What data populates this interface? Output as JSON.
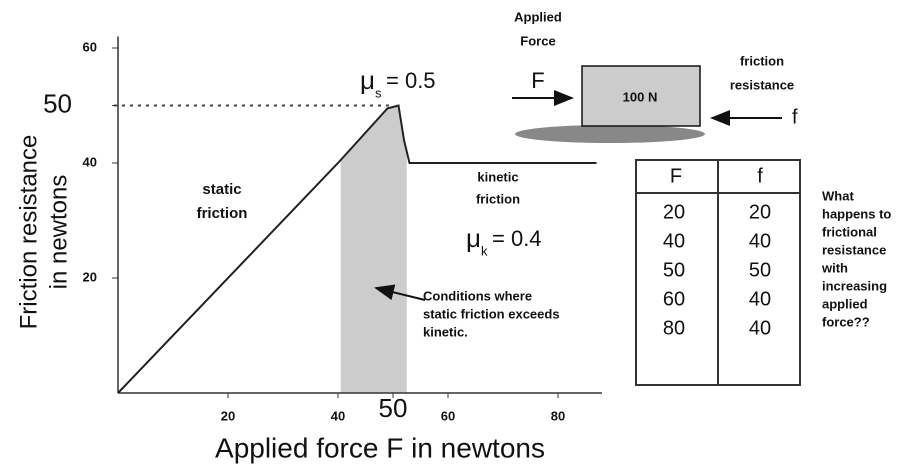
{
  "chart_data": {
    "type": "line",
    "x_label": "Applied force F in newtons",
    "y_label": [
      "Friction resistance",
      "in newtons"
    ],
    "x": [
      0,
      40,
      49,
      51,
      52,
      53,
      87
    ],
    "values": [
      0,
      40,
      49.5,
      50,
      44,
      40,
      40
    ],
    "color": "#222",
    "xlim": [
      0,
      88
    ],
    "ylim": [
      0,
      62
    ],
    "xticks": [
      20,
      40,
      50,
      60,
      80
    ],
    "yticks": [
      20,
      40,
      50,
      60
    ],
    "shaded_region": [
      40.5,
      52.5
    ],
    "annotations": {
      "static": [
        "static",
        "friction"
      ],
      "kinetic": [
        "kinetic",
        "friction"
      ],
      "mu_s": {
        "symbol": "μ",
        "subscript": "s",
        "text": "= 0.5"
      },
      "mu_k": {
        "symbol": "μ",
        "subscript": "k",
        "text": "= 0.4"
      },
      "conditions": [
        "Conditions where",
        "static friction exceeds",
        "kinetic."
      ]
    }
  },
  "diagram": {
    "applied_force": [
      "Applied",
      "Force"
    ],
    "force_symbol": "F",
    "block_weight": "100 N",
    "friction_resistance": [
      "friction",
      "resistance"
    ],
    "friction_symbol": "f"
  },
  "table": {
    "header": [
      "F",
      "f"
    ],
    "rows": [
      [
        "20",
        "20"
      ],
      [
        "40",
        "40"
      ],
      [
        "50",
        "50"
      ],
      [
        "60",
        "40"
      ],
      [
        "80",
        "40"
      ]
    ]
  },
  "question": [
    "What",
    "happens to",
    "frictional",
    "resistance",
    "with",
    "increasing",
    "applied",
    "force??"
  ]
}
